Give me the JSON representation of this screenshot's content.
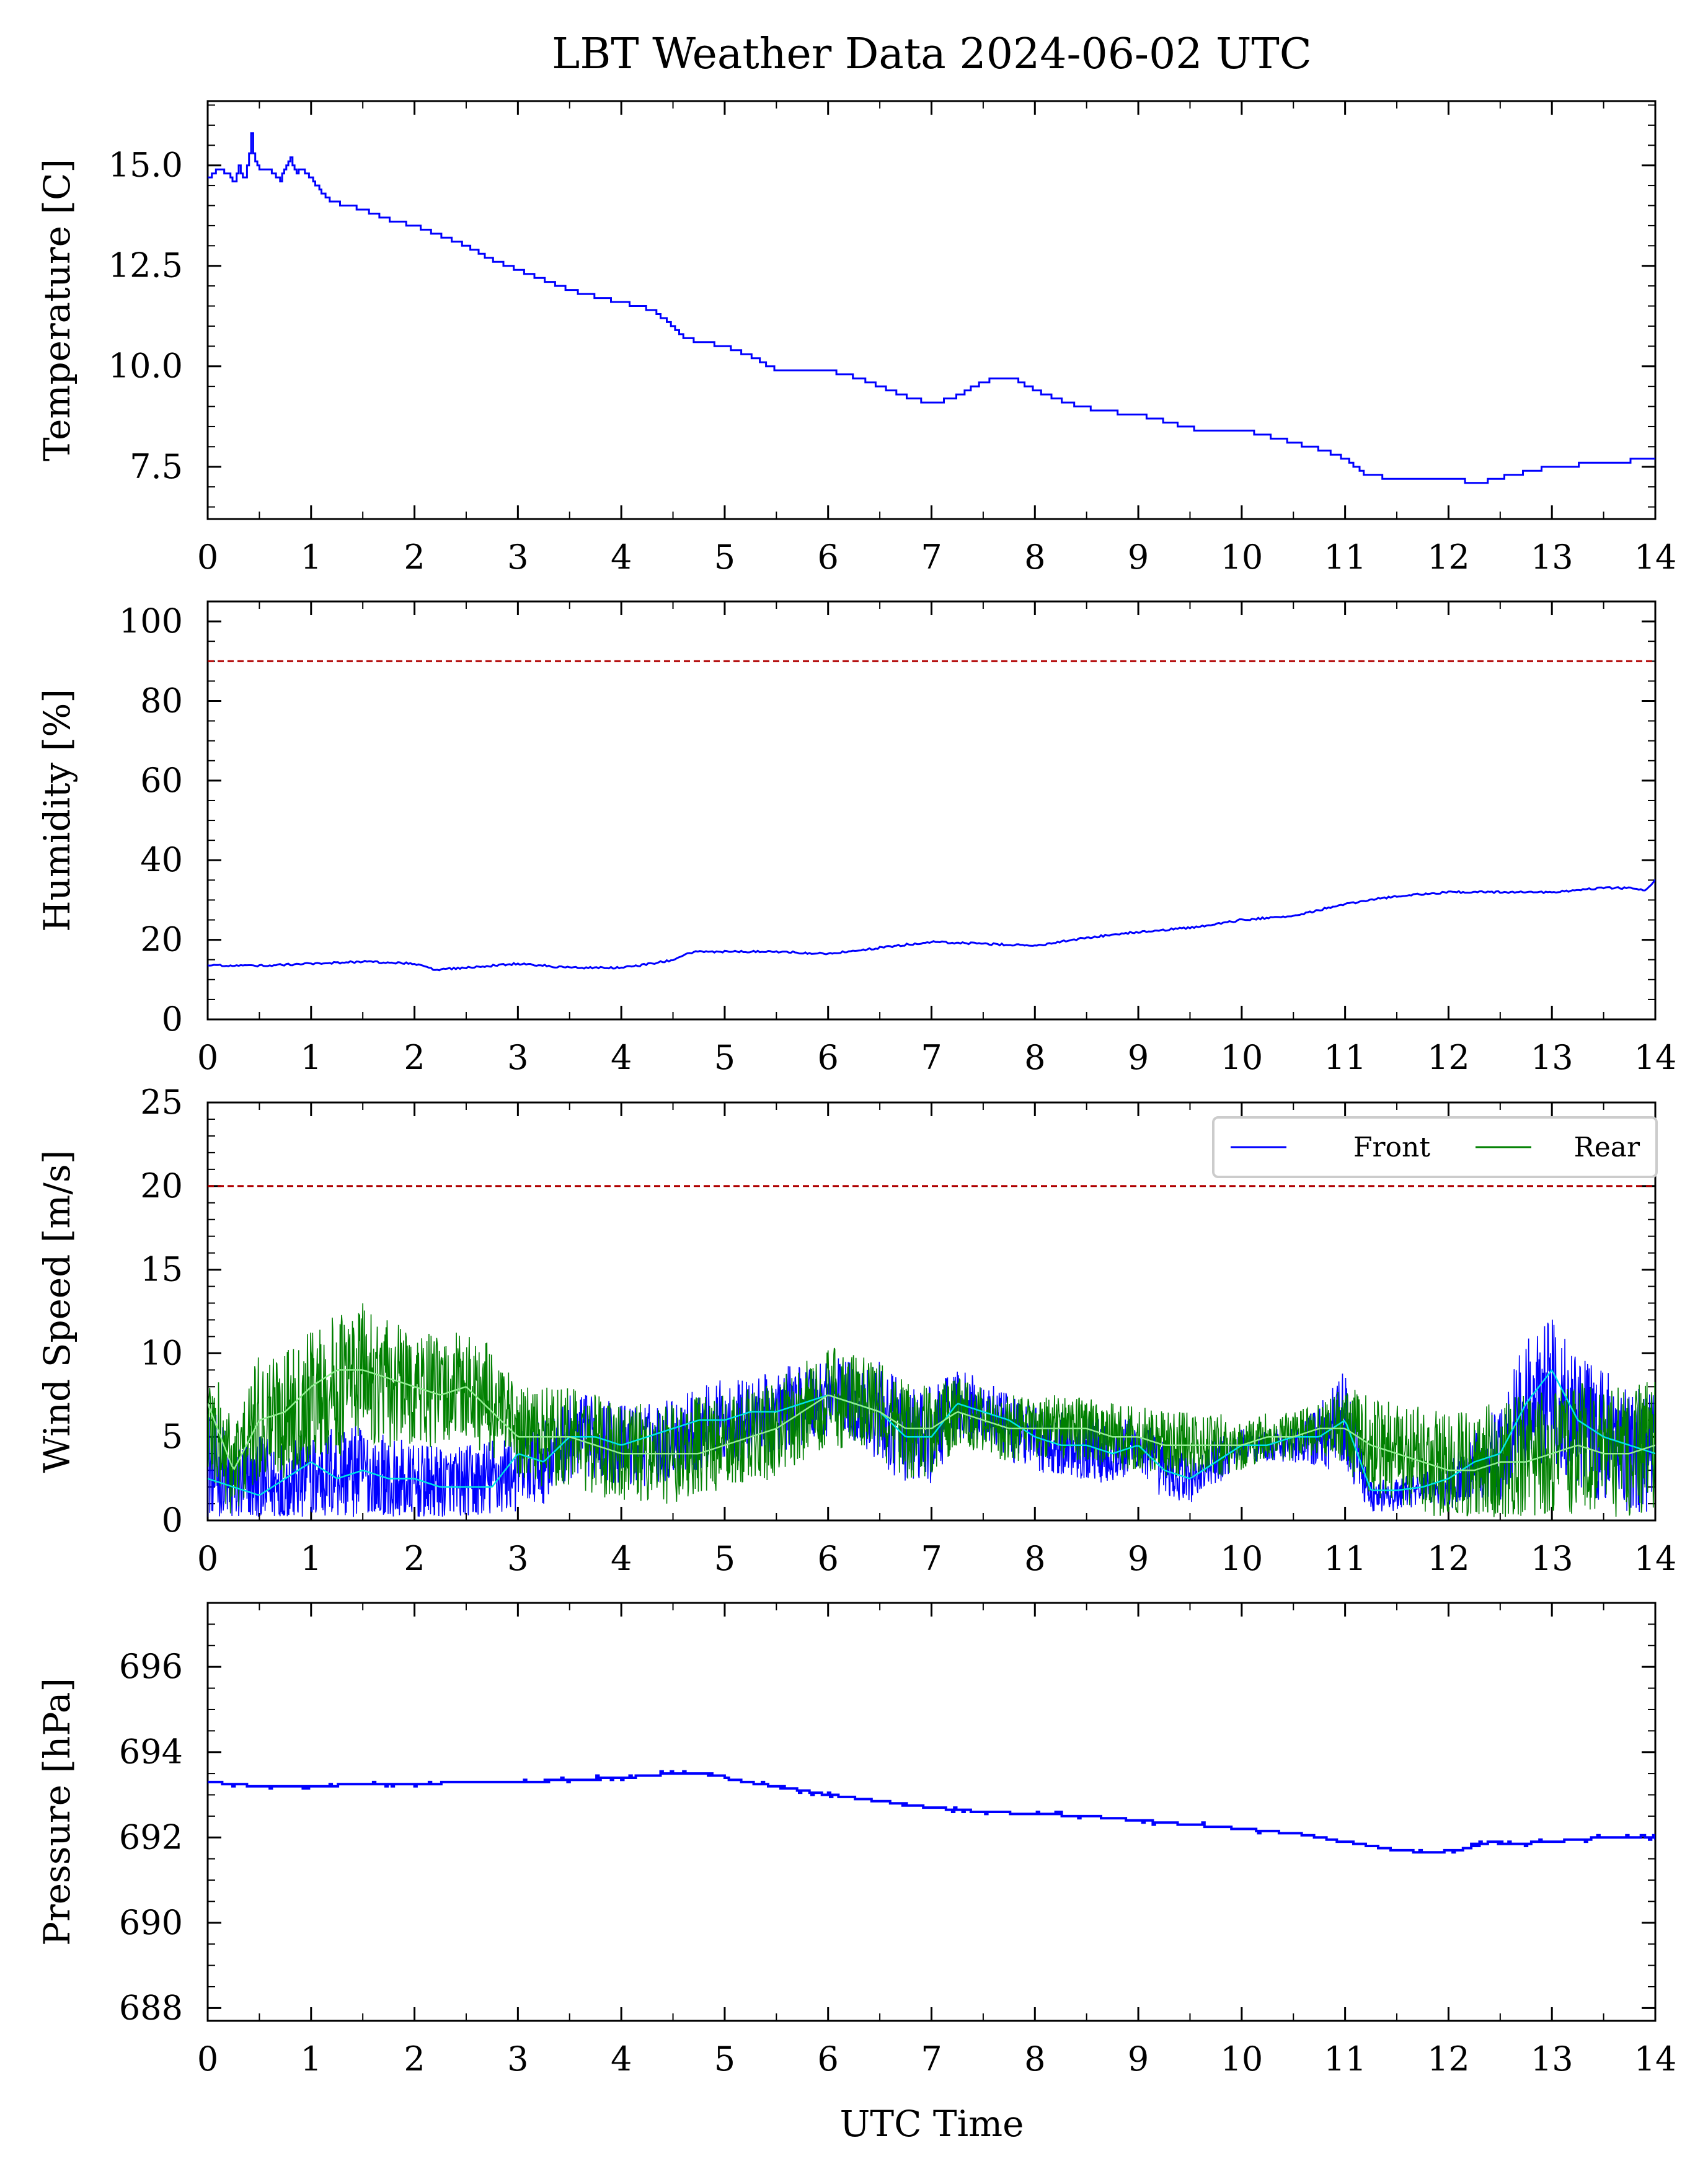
{
  "title": "LBT Weather Data 2024-06-02 UTC",
  "colors": {
    "temperature": "#0000ff",
    "humidity": "#0000ff",
    "pressure": "#0000ff",
    "wind_front": "#0000ff",
    "wind_rear": "#008000",
    "wind_front_smooth": "#00e5e5",
    "wind_rear_smooth": "#90ee90",
    "limit_line": "#b00000"
  },
  "chart_data": [
    {
      "type": "line",
      "name": "temperature",
      "ylabel": "Temperature [C]",
      "xlabel": "",
      "xlim": [
        0,
        14
      ],
      "ylim": [
        6.2,
        16.6
      ],
      "xticks": [
        0,
        1,
        2,
        3,
        4,
        5,
        6,
        7,
        8,
        9,
        10,
        11,
        12,
        13,
        14
      ],
      "yticks": [
        7.5,
        10.0,
        12.5,
        15.0
      ],
      "ytick_labels": [
        "7.5",
        "10.0",
        "12.5",
        "15.0"
      ],
      "minor_x": 0.5,
      "minor_y": 0.5,
      "grid": false,
      "series": [
        {
          "style": "step",
          "x": [
            0,
            0.1,
            0.2,
            0.25,
            0.3,
            0.35,
            0.4,
            0.42,
            0.45,
            0.5,
            0.6,
            0.7,
            0.75,
            0.8,
            0.85,
            0.9,
            1.0,
            1.1,
            1.2,
            1.5,
            1.8,
            2.0,
            2.3,
            2.5,
            2.7,
            3.0,
            3.3,
            3.5,
            3.8,
            4.0,
            4.3,
            4.5,
            4.6,
            5.0,
            5.3,
            5.5,
            5.8,
            6.0,
            6.3,
            6.6,
            6.8,
            7.0,
            7.2,
            7.4,
            7.6,
            7.8,
            8.0,
            8.3,
            8.6,
            9.0,
            9.3,
            9.6,
            10.0,
            10.2,
            10.5,
            10.8,
            11.0,
            11.2,
            11.5,
            11.8,
            12.0,
            12.3,
            12.6,
            13.0,
            13.5,
            14.0
          ],
          "y": [
            14.7,
            14.9,
            14.8,
            14.5,
            15.0,
            14.6,
            15.3,
            15.8,
            15.1,
            14.9,
            14.9,
            14.6,
            15.0,
            15.2,
            14.8,
            14.9,
            14.7,
            14.3,
            14.1,
            13.9,
            13.6,
            13.5,
            13.2,
            13.0,
            12.7,
            12.4,
            12.1,
            11.9,
            11.7,
            11.6,
            11.4,
            11.0,
            10.7,
            10.5,
            10.2,
            9.9,
            9.9,
            9.9,
            9.7,
            9.4,
            9.2,
            9.1,
            9.2,
            9.5,
            9.7,
            9.7,
            9.4,
            9.1,
            8.9,
            8.8,
            8.6,
            8.4,
            8.4,
            8.3,
            8.1,
            7.9,
            7.7,
            7.3,
            7.2,
            7.2,
            7.2,
            7.1,
            7.3,
            7.5,
            7.6,
            7.7
          ]
        }
      ]
    },
    {
      "type": "line",
      "name": "humidity",
      "ylabel": "Humidity [%]",
      "xlabel": "",
      "xlim": [
        0,
        14
      ],
      "ylim": [
        0,
        105
      ],
      "xticks": [
        0,
        1,
        2,
        3,
        4,
        5,
        6,
        7,
        8,
        9,
        10,
        11,
        12,
        13,
        14
      ],
      "yticks": [
        0,
        20,
        40,
        60,
        80,
        100
      ],
      "ytick_labels": [
        "0",
        "20",
        "40",
        "60",
        "80",
        "100"
      ],
      "minor_x": 0.5,
      "minor_y": 5,
      "grid": false,
      "hlines": [
        90
      ],
      "series": [
        {
          "style": "line",
          "x": [
            0,
            0.5,
            1,
            1.5,
            2,
            2.2,
            2.5,
            3,
            3.5,
            4,
            4.3,
            4.5,
            4.7,
            5,
            5.5,
            6,
            6.5,
            7,
            7.5,
            8,
            8.5,
            9,
            9.5,
            10,
            10.5,
            11,
            11.5,
            12,
            12.5,
            13,
            13.5,
            13.8,
            13.9,
            14
          ],
          "y": [
            13.5,
            13.5,
            14,
            14.5,
            14,
            12.5,
            13,
            14,
            13,
            13,
            14,
            15,
            17,
            17,
            17,
            16.5,
            18,
            19.5,
            19,
            18.5,
            20.5,
            22,
            23,
            25,
            26,
            29,
            31,
            32,
            32,
            32,
            33,
            33,
            32.5,
            35
          ]
        }
      ]
    },
    {
      "type": "line",
      "name": "wind",
      "ylabel": "Wind Speed [m/s]",
      "xlabel": "",
      "xlim": [
        0,
        14
      ],
      "ylim": [
        0,
        25
      ],
      "xticks": [
        0,
        1,
        2,
        3,
        4,
        5,
        6,
        7,
        8,
        9,
        10,
        11,
        12,
        13,
        14
      ],
      "yticks": [
        0,
        5,
        10,
        15,
        20,
        25
      ],
      "ytick_labels": [
        "0",
        "5",
        "10",
        "15",
        "20",
        "25"
      ],
      "minor_x": 0.5,
      "minor_y": 1,
      "grid": false,
      "hlines": [
        20
      ],
      "legend": "top-right",
      "series": [
        {
          "name": "Front",
          "x": [
            0,
            0.25,
            0.5,
            0.75,
            1,
            1.25,
            1.5,
            1.75,
            2,
            2.25,
            2.5,
            2.75,
            3,
            3.25,
            3.5,
            3.75,
            4,
            4.25,
            4.5,
            4.75,
            5,
            5.25,
            5.5,
            5.75,
            6,
            6.25,
            6.5,
            6.75,
            7,
            7.25,
            7.5,
            7.75,
            8,
            8.25,
            8.5,
            8.75,
            9,
            9.25,
            9.5,
            9.75,
            10,
            10.25,
            10.5,
            10.75,
            11,
            11.25,
            11.5,
            11.75,
            12,
            12.25,
            12.5,
            12.75,
            13,
            13.25,
            13.5,
            13.75,
            14
          ],
          "y": [
            3,
            2,
            2,
            2,
            2.5,
            3,
            2.8,
            2.2,
            2,
            2,
            2,
            2.5,
            3,
            3.5,
            5,
            5,
            4.5,
            4.5,
            5,
            5.5,
            6,
            6,
            6.5,
            7,
            7.5,
            7,
            6.5,
            5,
            5,
            7,
            6.5,
            5.5,
            5,
            4.5,
            4.5,
            4,
            4.5,
            3,
            2.5,
            3.5,
            4.5,
            4.5,
            4.5,
            5,
            6,
            1.5,
            1.5,
            2,
            2,
            3.5,
            4,
            7,
            8,
            6,
            5,
            4.5,
            4
          ],
          "amp": [
            4,
            3,
            3,
            3,
            3,
            3,
            3,
            3,
            2.5,
            2.5,
            2.5,
            2.5,
            2.5,
            2.5,
            2.5,
            2.5,
            2.5,
            2.5,
            2.5,
            2.5,
            2.5,
            2.5,
            2.5,
            2.5,
            2.5,
            2.5,
            3,
            3,
            3,
            2,
            2,
            2,
            2,
            2,
            2,
            2,
            1.8,
            1.8,
            1.5,
            1.5,
            1,
            1,
            1,
            2,
            3,
            1,
            1,
            1,
            1.5,
            2,
            3,
            4,
            4.5,
            4,
            4,
            4,
            4
          ]
        },
        {
          "name": "Rear",
          "x": [
            0,
            0.25,
            0.5,
            0.75,
            1,
            1.25,
            1.5,
            1.75,
            2,
            2.25,
            2.5,
            2.75,
            3,
            3.25,
            3.5,
            3.75,
            4,
            4.25,
            4.5,
            4.75,
            5,
            5.25,
            5.5,
            5.75,
            6,
            6.25,
            6.5,
            6.75,
            7,
            7.25,
            7.5,
            7.75,
            8,
            8.25,
            8.5,
            8.75,
            9,
            9.25,
            9.5,
            9.75,
            10,
            10.25,
            10.5,
            10.75,
            11,
            11.25,
            11.5,
            11.75,
            12,
            12.25,
            12.5,
            12.75,
            13,
            13.25,
            13.5,
            13.75,
            14
          ],
          "y": [
            6,
            3,
            6,
            6.5,
            7.5,
            8,
            9,
            8,
            8,
            7.5,
            8,
            7,
            5,
            5,
            5,
            4.5,
            4,
            4,
            4,
            4.5,
            4.5,
            5,
            5.5,
            6.5,
            7.5,
            7,
            6.5,
            5.5,
            5.5,
            6.5,
            6,
            5.5,
            5.5,
            5.5,
            5.5,
            5,
            5,
            4.5,
            4.5,
            4.5,
            4.5,
            5,
            5,
            5.5,
            5.5,
            4.5,
            4,
            3.5,
            3,
            3,
            3.5,
            3.5,
            4,
            4.5,
            4,
            4,
            4.5
          ],
          "amp": [
            4,
            3,
            4,
            4,
            4,
            4.5,
            4,
            4,
            3.5,
            3.5,
            3.5,
            3.5,
            3,
            3,
            3,
            3,
            3,
            3,
            3,
            3,
            3,
            3,
            3,
            3,
            3,
            3,
            3,
            3,
            3,
            2,
            2,
            2,
            2,
            2,
            2,
            2,
            2,
            2,
            2,
            2,
            1.5,
            1.5,
            1.5,
            1.5,
            2.5,
            3,
            3,
            3.5,
            3.5,
            3.5,
            4,
            4,
            4,
            4,
            4,
            4,
            4
          ]
        },
        {
          "x": [
            0,
            0.25,
            0.5,
            0.75,
            1,
            1.25,
            1.5,
            1.75,
            2,
            2.25,
            2.5,
            2.75,
            3,
            3.25,
            3.5,
            3.75,
            4,
            4.25,
            4.5,
            4.75,
            5,
            5.25,
            5.5,
            5.75,
            6,
            6.25,
            6.5,
            6.75,
            7,
            7.25,
            7.5,
            7.75,
            8,
            8.25,
            8.5,
            8.75,
            9,
            9.25,
            9.5,
            9.75,
            10,
            10.25,
            10.5,
            10.75,
            11,
            11.25,
            11.5,
            11.75,
            12,
            12.25,
            12.5,
            12.75,
            13,
            13.25,
            13.5,
            13.75,
            14
          ],
          "y": [
            2.5,
            2,
            1.5,
            2.5,
            3.5,
            2.5,
            3,
            2.5,
            2.5,
            2,
            2,
            2,
            4,
            3.5,
            5,
            5,
            4.5,
            5,
            5.5,
            6,
            6,
            6.5,
            6.5,
            7,
            7.5,
            7,
            6.5,
            5,
            5,
            7,
            6.5,
            6,
            5,
            4.5,
            4.5,
            4,
            4.5,
            3,
            2.5,
            3.5,
            4.5,
            4.5,
            5,
            5,
            6,
            1.8,
            1.8,
            2,
            2.5,
            3.5,
            4,
            7,
            9,
            6,
            5,
            4.5,
            4
          ]
        },
        {
          "x": [
            0,
            0.25,
            0.5,
            0.75,
            1,
            1.25,
            1.5,
            1.75,
            2,
            2.25,
            2.5,
            2.75,
            3,
            3.25,
            3.5,
            3.75,
            4,
            4.25,
            4.5,
            4.75,
            5,
            5.25,
            5.5,
            5.75,
            6,
            6.25,
            6.5,
            6.75,
            7,
            7.25,
            7.5,
            7.75,
            8,
            8.25,
            8.5,
            8.75,
            9,
            9.25,
            9.5,
            9.75,
            10,
            10.25,
            10.5,
            10.75,
            11,
            11.25,
            11.5,
            11.75,
            12,
            12.25,
            12.5,
            12.75,
            13,
            13.25,
            13.5,
            13.75,
            14
          ],
          "y": [
            7,
            3,
            6,
            6.5,
            8,
            9,
            9,
            8.5,
            8,
            7.5,
            8,
            6.5,
            5,
            5,
            5,
            4.5,
            4,
            4,
            4,
            4,
            4.5,
            5,
            5.5,
            6.5,
            7.5,
            7,
            6.5,
            5.5,
            5.5,
            6.5,
            6,
            5.5,
            5.5,
            5.5,
            5.5,
            5,
            5,
            4.5,
            4.5,
            4.5,
            4.5,
            5,
            5,
            5.5,
            5.5,
            4.5,
            4,
            3.5,
            3,
            3,
            3.5,
            3.5,
            4,
            4.5,
            4,
            4,
            4.5
          ]
        }
      ]
    },
    {
      "type": "line",
      "name": "pressure",
      "ylabel": "Pressure [hPa]",
      "xlabel": "UTC Time",
      "xlim": [
        0,
        14
      ],
      "ylim": [
        687.7,
        697.5
      ],
      "xticks": [
        0,
        1,
        2,
        3,
        4,
        5,
        6,
        7,
        8,
        9,
        10,
        11,
        12,
        13,
        14
      ],
      "yticks": [
        688,
        690,
        692,
        694,
        696
      ],
      "ytick_labels": [
        "688",
        "690",
        "692",
        "694",
        "696"
      ],
      "minor_x": 0.5,
      "minor_y": 0.5,
      "grid": false,
      "series": [
        {
          "style": "step",
          "x": [
            0,
            0.5,
            1,
            1.5,
            2,
            2.5,
            3,
            3.5,
            4,
            4.5,
            4.8,
            5.2,
            5.5,
            6,
            6.5,
            7,
            7.5,
            8,
            8.5,
            9,
            9.5,
            10,
            10.5,
            11,
            11.5,
            11.8,
            12.1,
            12.4,
            12.6,
            13,
            13.5,
            14
          ],
          "y": [
            693.3,
            693.2,
            693.2,
            693.25,
            693.25,
            693.3,
            693.3,
            693.35,
            693.4,
            693.5,
            693.5,
            693.3,
            693.2,
            693.0,
            692.85,
            692.7,
            692.6,
            692.55,
            692.5,
            692.4,
            692.3,
            692.2,
            692.1,
            691.9,
            691.7,
            691.65,
            691.7,
            691.9,
            691.85,
            691.9,
            692.0,
            692.0
          ]
        }
      ]
    }
  ]
}
